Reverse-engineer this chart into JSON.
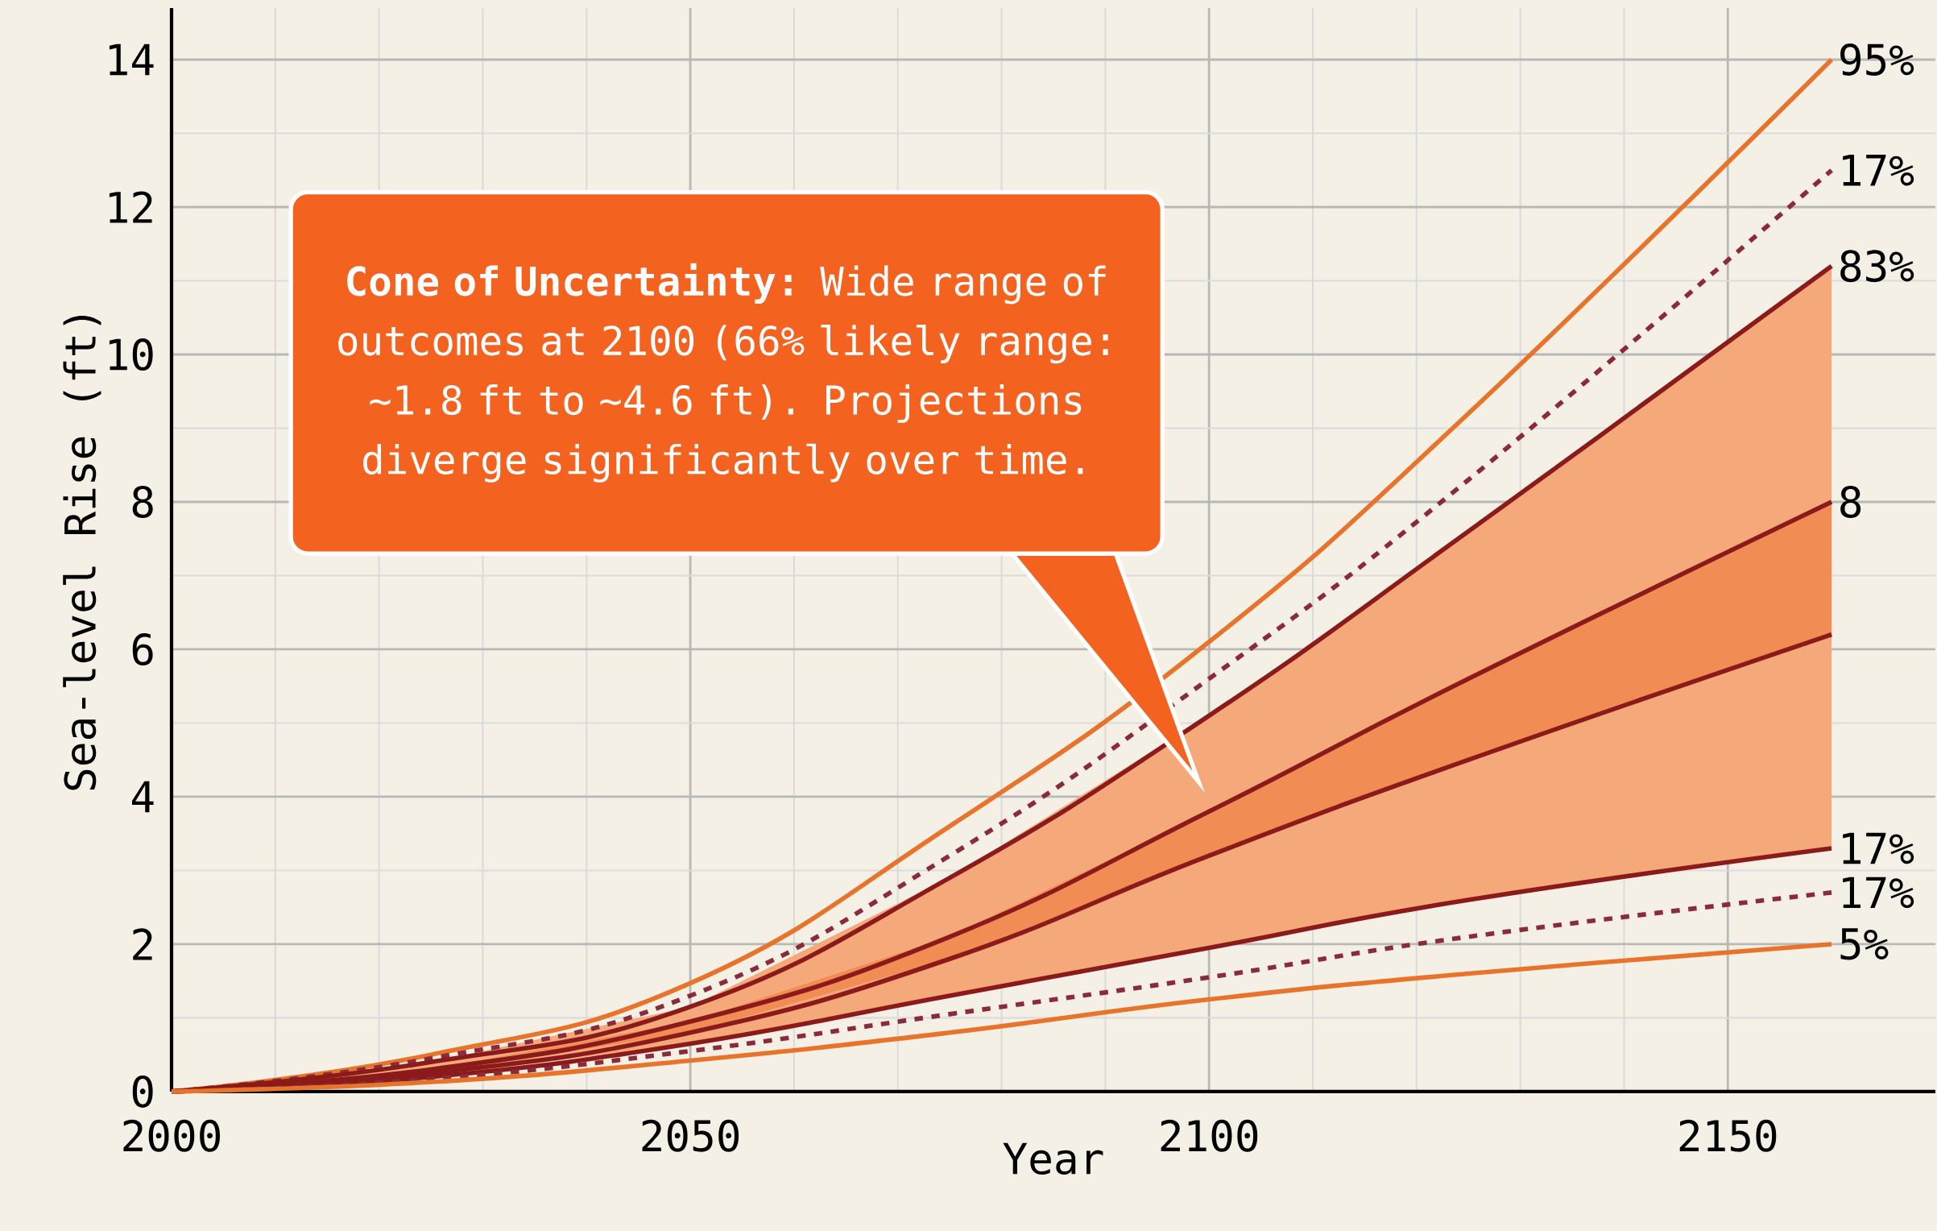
{
  "chart_data": {
    "type": "line",
    "xlabel": "Year",
    "ylabel": "Sea-level Rise (ft)",
    "x": [
      2000,
      2025,
      2050,
      2075,
      2100,
      2125,
      2160
    ],
    "xlim": [
      2000,
      2170
    ],
    "ylim": [
      0,
      14.7
    ],
    "xticks": [
      2000,
      2050,
      2100,
      2150
    ],
    "yticks": [
      0,
      2,
      4,
      6,
      8,
      10,
      12,
      14
    ],
    "grid": true,
    "series": [
      {
        "name": "95%",
        "color": "#e8732a",
        "line_style": "solid",
        "values": [
          0,
          0.5,
          1.47,
          3.6,
          6.1,
          9.2,
          14
        ]
      },
      {
        "name": "17%",
        "color": "#8b2a3a",
        "line_style": "dashed",
        "values": [
          0,
          0.45,
          1.3,
          3.2,
          5.6,
          8.3,
          12.5
        ]
      },
      {
        "name": "83%",
        "color": "#8b1a1a",
        "line_style": "solid",
        "values": [
          0,
          0.4,
          1.15,
          2.9,
          5.1,
          7.6,
          11.2
        ]
      },
      {
        "name": "8",
        "color": "#8b1a1a",
        "line_style": "solid",
        "values": [
          0,
          0.3,
          0.95,
          2.1,
          3.8,
          5.6,
          8.0
        ],
        "lower": [
          0,
          0.2,
          0.65,
          1.3,
          1.95,
          2.6,
          3.3
        ],
        "upper": [
          0,
          0.4,
          1.15,
          2.9,
          5.1,
          7.6,
          11.2
        ]
      },
      {
        "color": "#8b1a1a",
        "line_style": "solid",
        "values": [
          0,
          0.25,
          0.8,
          1.8,
          3.2,
          4.5,
          6.2
        ],
        "lower": [
          0,
          0.25,
          0.8,
          1.8,
          3.2,
          4.5,
          6.2
        ],
        "upper": [
          0,
          0.3,
          0.95,
          2.1,
          3.8,
          5.6,
          8.0
        ]
      },
      {
        "name": "17%",
        "color": "#8b1a1a",
        "line_style": "solid",
        "values": [
          0,
          0.2,
          0.65,
          1.3,
          1.95,
          2.6,
          3.3
        ]
      },
      {
        "name": "17%",
        "color": "#8b2a3a",
        "line_style": "dashed",
        "values": [
          0,
          0.17,
          0.55,
          1.05,
          1.55,
          2.1,
          2.7
        ]
      },
      {
        "name": "5%",
        "color": "#e8732a",
        "line_style": "solid",
        "values": [
          0,
          0.13,
          0.42,
          0.8,
          1.25,
          1.6,
          2.0
        ]
      }
    ],
    "annotations": [
      "**Cone of Uncertainty:** Wide range of outcomes at 2100 (66% likely range: ~1.8 ft to ~4.6 ft). Projections diverge significantly over time."
    ]
  }
}
